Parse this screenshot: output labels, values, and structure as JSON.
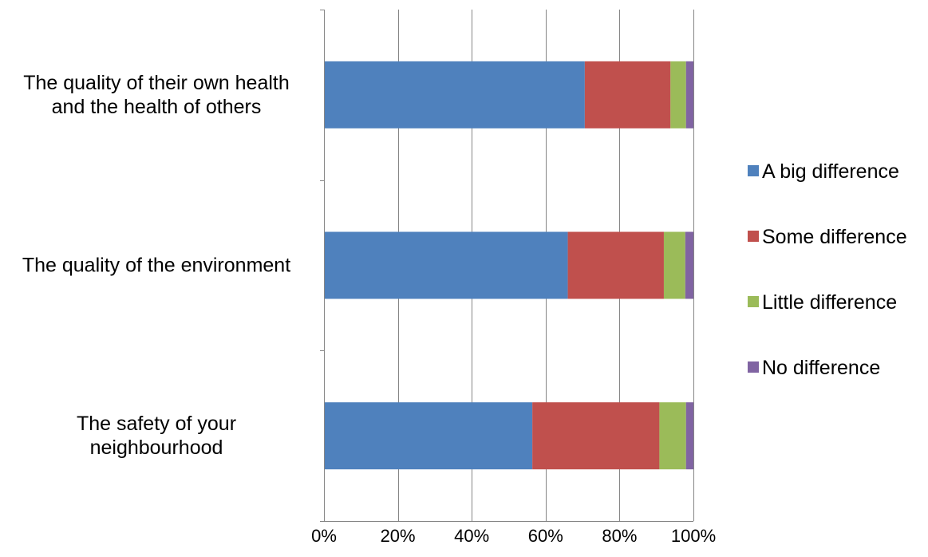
{
  "chart_data": {
    "type": "bar",
    "orientation": "horizontal",
    "stacked": "percent",
    "categories": [
      [
        "The quality of their own health",
        "and the health of others"
      ],
      [
        "The quality of the environment"
      ],
      [
        "The safety of your",
        "neighbourhood"
      ]
    ],
    "series": [
      {
        "name": "A big difference",
        "color": "#4F81BD",
        "values": [
          70.6,
          66.0,
          56.4
        ]
      },
      {
        "name": "Some difference",
        "color": "#C0504D",
        "values": [
          23.2,
          26.0,
          34.4
        ]
      },
      {
        "name": "Little difference",
        "color": "#9BBB59",
        "values": [
          4.2,
          5.8,
          7.2
        ]
      },
      {
        "name": "No difference",
        "color": "#8064A2",
        "values": [
          2.0,
          2.2,
          2.0
        ]
      }
    ],
    "x_ticks": [
      "0%",
      "20%",
      "40%",
      "60%",
      "80%",
      "100%"
    ],
    "xlim": [
      0,
      100
    ],
    "title": "",
    "xlabel": "",
    "ylabel": "",
    "grid": true,
    "legend": "right",
    "gridline_color": "#868686"
  }
}
